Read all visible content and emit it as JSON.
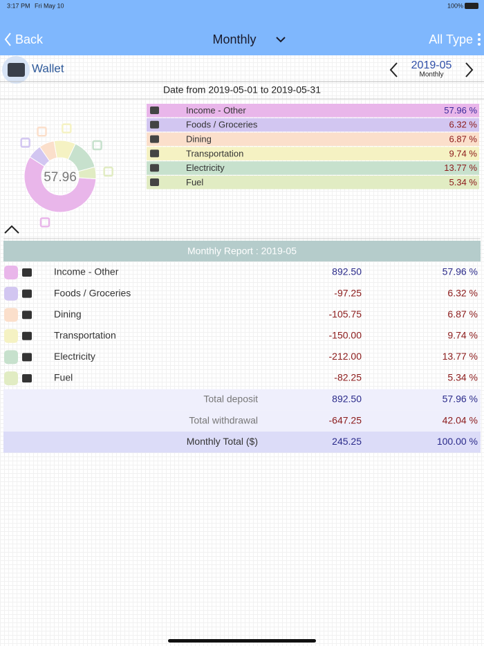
{
  "status_bar": {
    "time": "3:17 PM",
    "date": "Fri May 10",
    "battery": "100%"
  },
  "nav": {
    "back": "Back",
    "title": "Monthly",
    "filter": "All Type"
  },
  "account": {
    "name": "Wallet",
    "period": "2019-05",
    "period_type": "Monthly"
  },
  "date_range": "Date from 2019-05-01 to 2019-05-31",
  "chart_data": {
    "type": "pie",
    "donut": true,
    "categories": [
      "Income - Other",
      "Foods / Groceries",
      "Dining",
      "Transportation",
      "Electricity",
      "Fuel"
    ],
    "values": [
      57.96,
      6.32,
      6.87,
      9.74,
      13.77,
      5.34
    ],
    "value_labels": [
      "57.96 %",
      "6.32 %",
      "6.87 %",
      "9.74 %",
      "13.77 %",
      "5.34 %"
    ],
    "colors": [
      "#e9b6ea",
      "#d2c6f1",
      "#fbdfcb",
      "#f5f2c3",
      "#c7e1cd",
      "#e1ecc3"
    ]
  },
  "report": {
    "title": "Monthly Report : 2019-05",
    "rows": [
      {
        "name": "Income - Other",
        "amount": "892.50",
        "percent": "57.96 %"
      },
      {
        "name": "Foods / Groceries",
        "amount": "-97.25",
        "percent": "6.32 %"
      },
      {
        "name": "Dining",
        "amount": "-105.75",
        "percent": "6.87 %"
      },
      {
        "name": "Transportation",
        "amount": "-150.00",
        "percent": "9.74 %"
      },
      {
        "name": "Electricity",
        "amount": "-212.00",
        "percent": "13.77 %"
      },
      {
        "name": "Fuel",
        "amount": "-82.25",
        "percent": "5.34 %"
      }
    ],
    "summary": [
      {
        "name": "Total deposit",
        "amount": "892.50",
        "percent": "57.96 %"
      },
      {
        "name": "Total withdrawal",
        "amount": "-647.25",
        "percent": "42.04 %"
      },
      {
        "name": "Monthly Total ($)",
        "amount": "245.25",
        "percent": "100.00 %"
      }
    ]
  }
}
